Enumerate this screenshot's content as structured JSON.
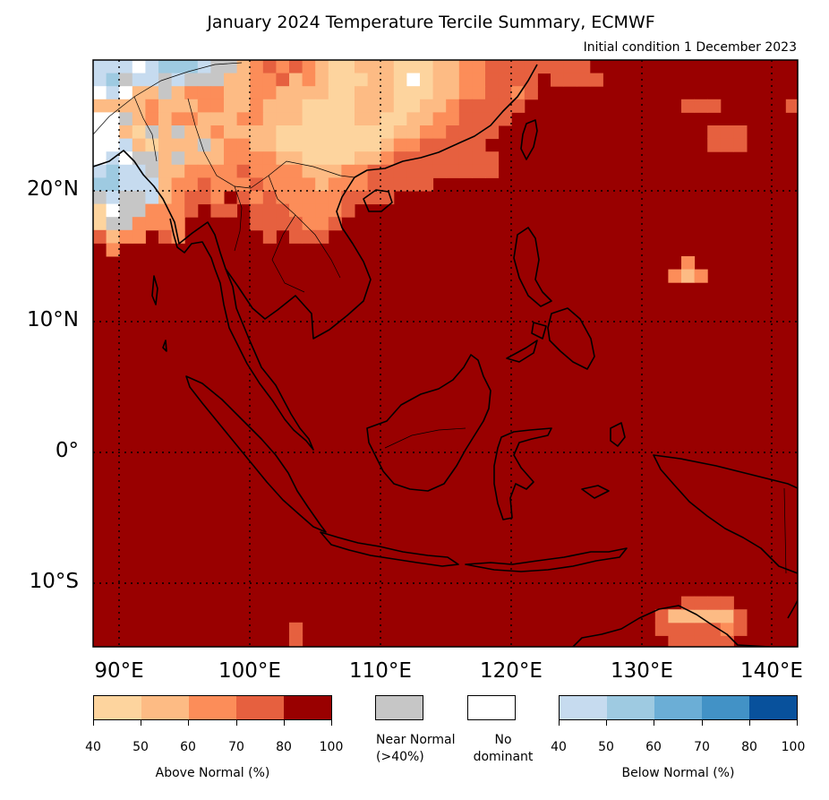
{
  "title": "January 2024 Temperature Tercile Summary, ECMWF",
  "subtitle": "Initial condition 1 December 2023",
  "axes": {
    "lat_labels": [
      "20°N",
      "10°N",
      "0°",
      "10°S"
    ],
    "lon_labels": [
      "90°E",
      "100°E",
      "110°E",
      "120°E",
      "130°E",
      "140°E"
    ]
  },
  "legend": {
    "above": {
      "label": "Above Normal (%)",
      "ticks": [
        "40",
        "50",
        "60",
        "70",
        "80",
        "100"
      ],
      "colors": [
        "#fdd49e",
        "#fdbb84",
        "#fc8d59",
        "#e6603f",
        "#990000"
      ]
    },
    "near": {
      "label_line1": "Near Normal",
      "label_line2": "(>40%)",
      "color": "#c6c6c6"
    },
    "none": {
      "label_line1": "No",
      "label_line2": "dominant",
      "color": "#ffffff"
    },
    "below": {
      "label": "Below Normal (%)",
      "ticks": [
        "40",
        "50",
        "60",
        "70",
        "80",
        "100"
      ],
      "colors": [
        "#c6dbef",
        "#9ecae1",
        "#6baed6",
        "#4292c6",
        "#08519c"
      ]
    }
  },
  "map": {
    "extent_lon": [
      88,
      142
    ],
    "extent_lat": [
      -15,
      30
    ],
    "background_color": "#990000"
  }
}
